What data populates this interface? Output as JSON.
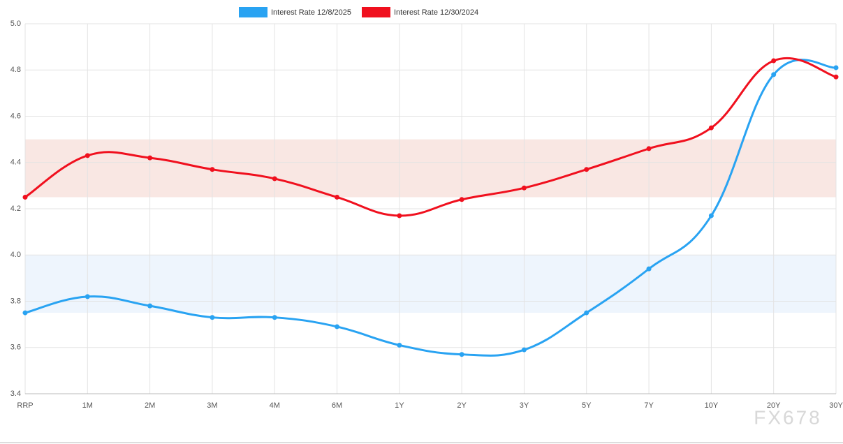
{
  "chart_data": {
    "type": "line",
    "categories": [
      "RRP",
      "1M",
      "2M",
      "3M",
      "4M",
      "6M",
      "1Y",
      "2Y",
      "3Y",
      "5Y",
      "7Y",
      "10Y",
      "20Y",
      "30Y"
    ],
    "series": [
      {
        "name": "Interest Rate 12/8/2025",
        "color": "#29a3f2",
        "values": [
          3.75,
          3.82,
          3.78,
          3.73,
          3.73,
          3.69,
          3.61,
          3.57,
          3.59,
          3.75,
          3.94,
          4.17,
          4.78,
          4.81
        ]
      },
      {
        "name": "Interest Rate 12/30/2024",
        "color": "#f0101e",
        "values": [
          4.25,
          4.43,
          4.42,
          4.37,
          4.33,
          4.25,
          4.17,
          4.24,
          4.29,
          4.37,
          4.46,
          4.55,
          4.84,
          4.77
        ]
      }
    ],
    "bands": [
      {
        "from": 3.75,
        "to": 4.0,
        "color": "#eef5fd"
      },
      {
        "from": 4.25,
        "to": 4.5,
        "color": "#f9e7e3"
      }
    ],
    "ylim": [
      3.4,
      5.0
    ],
    "yticks": [
      3.4,
      3.6,
      3.8,
      {
        "value": 4,
        "label": "4.0"
      },
      4.2,
      4.4,
      4.6,
      4.8,
      {
        "value": 5,
        "label": "5.0"
      }
    ],
    "grid": true,
    "watermark": "FX678"
  }
}
